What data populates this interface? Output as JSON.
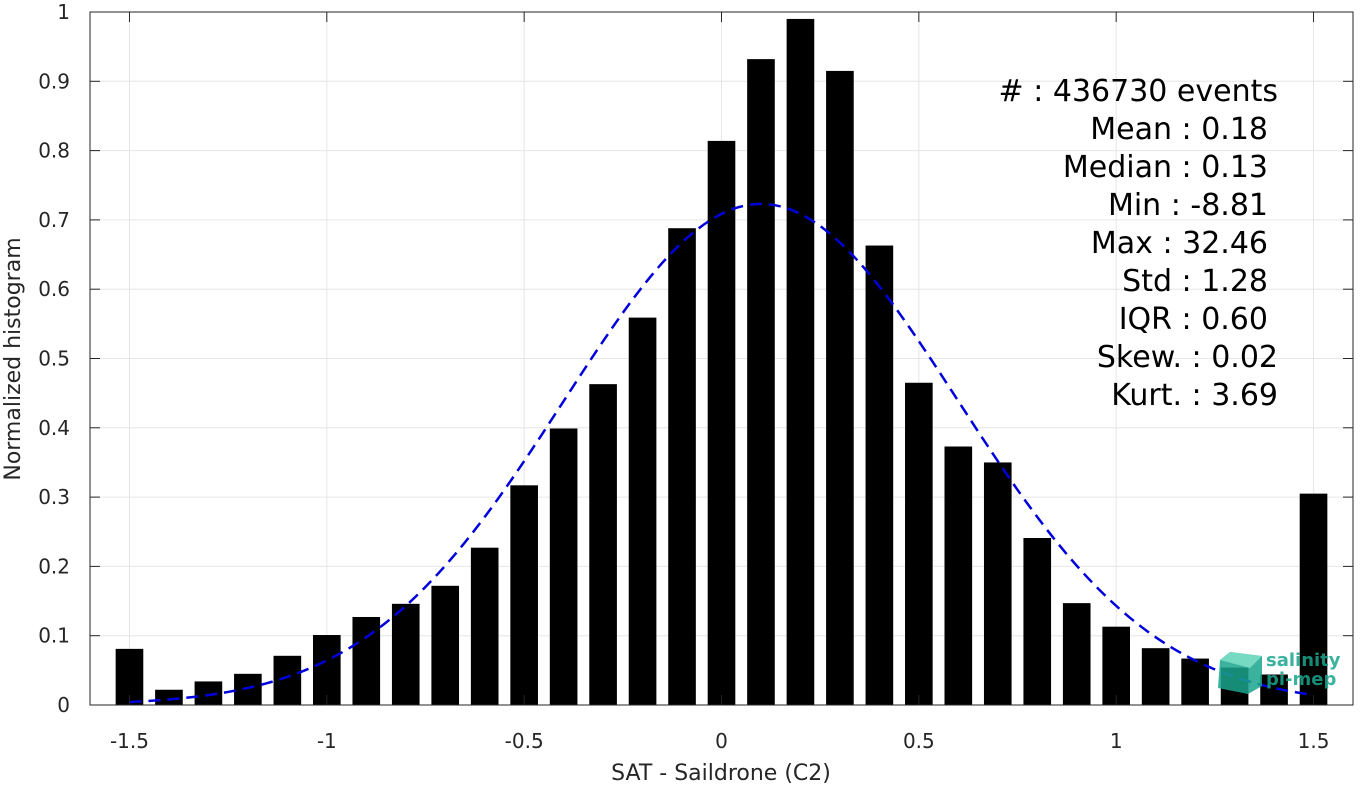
{
  "chart_data": {
    "type": "bar",
    "xlabel": "SAT - Saildrone (C2)",
    "ylabel": "Normalized histogram",
    "xlim": [
      -1.6,
      1.6
    ],
    "ylim": [
      0,
      1
    ],
    "grid": true,
    "x_ticks": [
      "-1.5",
      "-1",
      "-0.5",
      "0",
      "0.5",
      "1",
      "1.5"
    ],
    "y_ticks": [
      "0",
      "0.1",
      "0.2",
      "0.3",
      "0.4",
      "0.5",
      "0.6",
      "0.7",
      "0.8",
      "0.9",
      "1"
    ],
    "bar_color": "#000000",
    "curve_color": "#0000dd",
    "bins": [
      {
        "x": -1.5,
        "value": 0.081
      },
      {
        "x": -1.4,
        "value": 0.022
      },
      {
        "x": -1.3,
        "value": 0.034
      },
      {
        "x": -1.2,
        "value": 0.045
      },
      {
        "x": -1.1,
        "value": 0.071
      },
      {
        "x": -1.0,
        "value": 0.101
      },
      {
        "x": -0.9,
        "value": 0.127
      },
      {
        "x": -0.8,
        "value": 0.146
      },
      {
        "x": -0.7,
        "value": 0.172
      },
      {
        "x": -0.6,
        "value": 0.227
      },
      {
        "x": -0.5,
        "value": 0.317
      },
      {
        "x": -0.4,
        "value": 0.399
      },
      {
        "x": -0.3,
        "value": 0.463
      },
      {
        "x": -0.2,
        "value": 0.559
      },
      {
        "x": -0.1,
        "value": 0.688
      },
      {
        "x": 0.0,
        "value": 0.814
      },
      {
        "x": 0.1,
        "value": 0.932
      },
      {
        "x": 0.2,
        "value": 0.99
      },
      {
        "x": 0.3,
        "value": 0.915
      },
      {
        "x": 0.4,
        "value": 0.663
      },
      {
        "x": 0.5,
        "value": 0.465
      },
      {
        "x": 0.6,
        "value": 0.373
      },
      {
        "x": 0.7,
        "value": 0.35
      },
      {
        "x": 0.8,
        "value": 0.241
      },
      {
        "x": 0.9,
        "value": 0.147
      },
      {
        "x": 1.0,
        "value": 0.113
      },
      {
        "x": 1.1,
        "value": 0.082
      },
      {
        "x": 1.2,
        "value": 0.067
      },
      {
        "x": 1.3,
        "value": 0.054
      },
      {
        "x": 1.4,
        "value": 0.044
      },
      {
        "x": 1.5,
        "value": 0.305
      }
    ],
    "fit_curve": {
      "style": "dashed",
      "mean": 0.1,
      "std": 0.5,
      "peak": 0.723,
      "x_range": [
        -1.5,
        1.5
      ]
    },
    "stats": [
      {
        "label": "#",
        "value": "436730 events"
      },
      {
        "label": "Mean",
        "value": "0.18"
      },
      {
        "label": "Median",
        "value": "0.13"
      },
      {
        "label": "Min",
        "value": "-8.81"
      },
      {
        "label": "Max",
        "value": "32.46"
      },
      {
        "label": "Std",
        "value": "1.28"
      },
      {
        "label": "IQR",
        "value": "0.60"
      },
      {
        "label": "Skew.",
        "value": "0.02"
      },
      {
        "label": "Kurt.",
        "value": "3.69"
      }
    ]
  },
  "stats_text": {
    "count": "#  : 436730 events",
    "mean": "Mean : 0.18",
    "median": "Median : 0.13",
    "min": "Min : -8.81",
    "max": "Max : 32.46",
    "std": "Std : 1.28",
    "iqr": "IQR : 0.60",
    "skew": "Skew. : 0.02",
    "kurt": "Kurt. : 3.69"
  },
  "logo": {
    "line1": "salinity",
    "line2": "pi-mep",
    "color": "#1aa58c"
  }
}
